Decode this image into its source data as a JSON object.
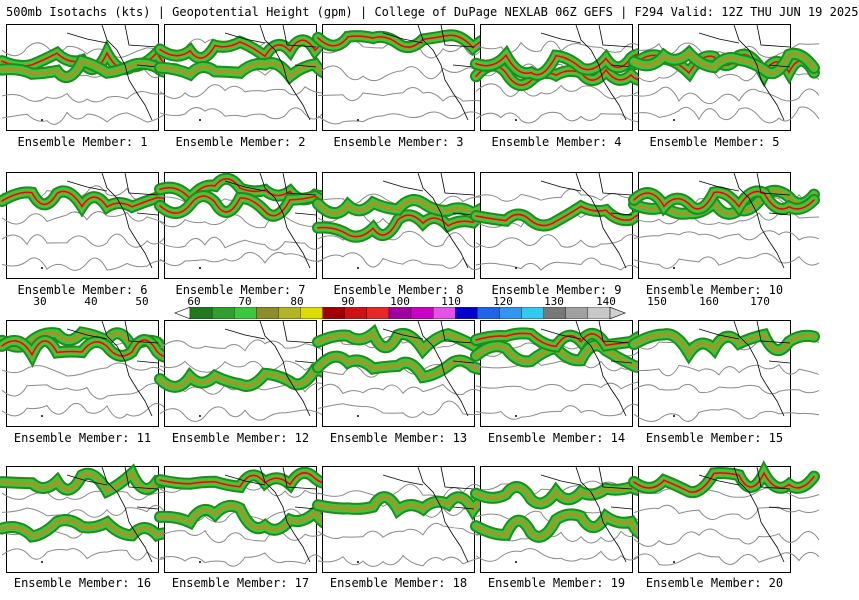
{
  "header": {
    "title": "500mb Isotachs (kts) | Geopotential Height (gpm) | College of DuPage NEXLAB   06Z GEFS | F294 Valid: 12Z THU JUN 19 2025"
  },
  "colorbar": {
    "ticks": [
      "30",
      "40",
      "50",
      "60",
      "70",
      "80",
      "90",
      "100",
      "110",
      "120",
      "130",
      "140",
      "150",
      "160",
      "170"
    ],
    "colors": [
      "#1e7a1e",
      "#2e9e2e",
      "#3cc83c",
      "#8c8c2a",
      "#b4b428",
      "#dcdc00",
      "#a00000",
      "#c81414",
      "#e62828",
      "#a000a0",
      "#c800c8",
      "#e650e6",
      "#0000c8",
      "#1e64e6",
      "#3296f0",
      "#32c8f0",
      "#787878",
      "#a0a0a0",
      "#c8c8c8"
    ]
  },
  "panels": [
    {
      "label": "Ensemble Member: 1"
    },
    {
      "label": "Ensemble Member: 2"
    },
    {
      "label": "Ensemble Member: 3"
    },
    {
      "label": "Ensemble Member: 4"
    },
    {
      "label": "Ensemble Member: 5"
    },
    {
      "label": "Ensemble Member: 6"
    },
    {
      "label": "Ensemble Member: 7"
    },
    {
      "label": "Ensemble Member: 8"
    },
    {
      "label": "Ensemble Member: 9"
    },
    {
      "label": "Ensemble Member: 10"
    },
    {
      "label": "Ensemble Member: 11"
    },
    {
      "label": "Ensemble Member: 12"
    },
    {
      "label": "Ensemble Member: 13"
    },
    {
      "label": "Ensemble Member: 14"
    },
    {
      "label": "Ensemble Member: 15"
    },
    {
      "label": "Ensemble Member: 16"
    },
    {
      "label": "Ensemble Member: 17"
    },
    {
      "label": "Ensemble Member: 18"
    },
    {
      "label": "Ensemble Member: 19"
    },
    {
      "label": "Ensemble Member: 20"
    }
  ]
}
